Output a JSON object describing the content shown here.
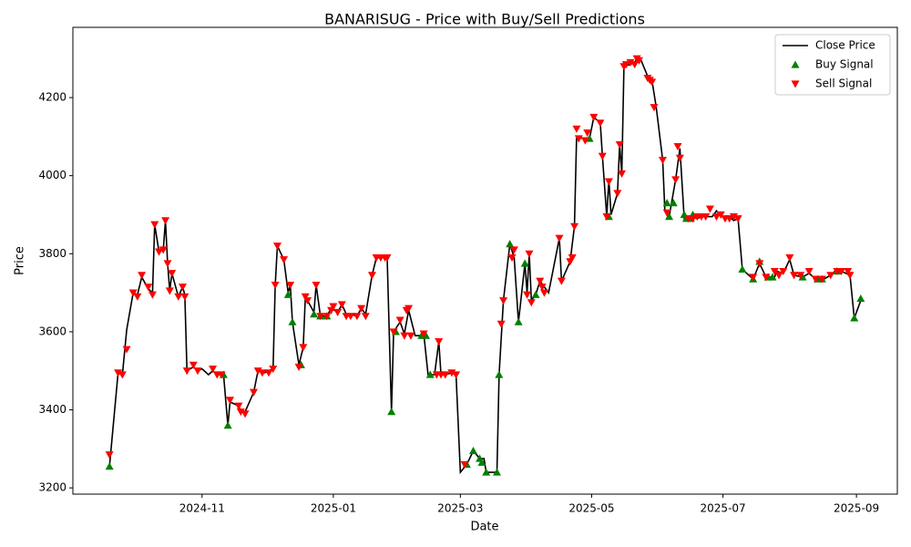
{
  "chart_data": {
    "type": "line",
    "title": "BANARISUG - Price with Buy/Sell Predictions",
    "x_label": "Date",
    "y_label": "Price",
    "xlim": [
      1,
      384
    ],
    "ylim": [
      3184,
      4380
    ],
    "xticks": [
      {
        "value": 61,
        "label": "2024-11"
      },
      {
        "value": 122,
        "label": "2025-01"
      },
      {
        "value": 181,
        "label": "2025-03"
      },
      {
        "value": 242,
        "label": "2025-05"
      },
      {
        "value": 303,
        "label": "2025-07"
      },
      {
        "value": 365,
        "label": "2025-09"
      }
    ],
    "yticks": [
      3200,
      3400,
      3600,
      3800,
      4000,
      4200
    ],
    "legend": "upper right",
    "series": [
      {
        "name": "Close Price",
        "color": "#000000",
        "style": "line",
        "x": [
          18,
          22,
          24,
          26,
          29,
          31,
          33,
          36,
          38,
          39,
          41,
          43,
          44,
          45,
          46,
          47,
          50,
          52,
          53,
          54,
          57,
          59,
          61,
          64,
          66,
          68,
          71,
          73,
          74,
          78,
          79,
          81,
          85,
          87,
          90,
          92,
          94,
          95,
          96,
          99,
          101,
          102,
          103,
          106,
          108,
          109,
          113,
          114,
          116,
          119,
          121,
          124,
          126,
          128,
          130,
          133,
          135,
          137,
          140,
          142,
          145,
          147,
          149,
          150,
          153,
          155,
          157,
          160,
          162,
          164,
          166,
          169,
          171,
          172,
          174,
          177,
          179,
          181,
          184,
          187,
          190,
          192,
          193,
          198,
          199,
          201,
          204,
          206,
          208,
          211,
          212,
          213,
          214,
          216,
          218,
          222,
          227,
          228,
          232,
          234,
          235,
          238,
          241,
          243,
          246,
          247,
          249,
          250,
          251,
          254,
          255,
          256,
          257,
          260,
          262,
          263,
          265,
          268,
          270,
          272,
          275,
          276,
          278,
          281,
          283,
          285,
          287,
          289,
          291,
          293,
          295,
          298,
          300,
          302,
          304,
          307,
          308,
          310,
          312,
          317,
          320,
          323,
          327,
          328,
          331,
          334,
          336,
          340,
          343,
          346,
          350,
          353,
          355,
          358,
          362,
          364,
          367
        ],
        "values": [
          3255,
          3495,
          3490,
          3605,
          3700,
          3695,
          3740,
          3710,
          3700,
          3875,
          3805,
          3810,
          3885,
          3775,
          3705,
          3750,
          3690,
          3715,
          3695,
          3500,
          3510,
          3500,
          3505,
          3490,
          3500,
          3490,
          3490,
          3360,
          3420,
          3410,
          3395,
          3395,
          3445,
          3500,
          3495,
          3500,
          3505,
          3720,
          3820,
          3785,
          3700,
          3720,
          3625,
          3515,
          3560,
          3690,
          3650,
          3720,
          3640,
          3640,
          3660,
          3650,
          3670,
          3645,
          3645,
          3640,
          3660,
          3645,
          3745,
          3790,
          3790,
          3790,
          3395,
          3600,
          3625,
          3595,
          3655,
          3590,
          3590,
          3595,
          3490,
          3490,
          3575,
          3490,
          3490,
          3495,
          3490,
          3240,
          3260,
          3295,
          3275,
          3275,
          3240,
          3240,
          3490,
          3680,
          3825,
          3790,
          3625,
          3775,
          3700,
          3800,
          3680,
          3695,
          3730,
          3700,
          3840,
          3730,
          3780,
          3870,
          4100,
          4095,
          4095,
          4150,
          4135,
          4050,
          3895,
          3990,
          3900,
          3955,
          4080,
          4005,
          4280,
          4285,
          4290,
          4300,
          4295,
          4255,
          4245,
          4175,
          4040,
          3910,
          3895,
          3990,
          4070,
          3890,
          3890,
          3895,
          3890,
          3895,
          3895,
          3895,
          3910,
          3895,
          3895,
          3890,
          3885,
          3890,
          3760,
          3735,
          3775,
          3740,
          3740,
          3755,
          3750,
          3785,
          3745,
          3740,
          3750,
          3735,
          3735,
          3745,
          3755,
          3755,
          3745,
          3635,
          3680
        ]
      },
      {
        "name": "Buy Signal",
        "color": "#008000",
        "style": "triangle-up",
        "x": [
          18,
          71,
          73,
          101,
          103,
          107,
          113,
          116,
          119,
          149,
          151,
          163,
          165,
          167,
          184,
          187,
          190,
          191,
          193,
          198,
          199,
          204,
          208,
          211,
          216,
          241,
          250,
          277,
          278,
          280,
          285,
          286,
          288,
          289,
          312,
          317,
          320,
          324,
          326,
          340,
          347,
          349,
          356,
          364,
          367
        ],
        "values": [
          3255,
          3490,
          3360,
          3695,
          3625,
          3515,
          3645,
          3640,
          3640,
          3395,
          3600,
          3590,
          3590,
          3490,
          3260,
          3295,
          3275,
          3265,
          3240,
          3240,
          3490,
          3825,
          3625,
          3775,
          3695,
          4095,
          3895,
          3930,
          3895,
          3930,
          3900,
          3890,
          3890,
          3900,
          3760,
          3735,
          3780,
          3740,
          3740,
          3740,
          3735,
          3735,
          3755,
          3635,
          3685
        ]
      },
      {
        "name": "Sell Signal",
        "color": "#ff0000",
        "style": "triangle-down",
        "x": [
          18,
          22,
          24,
          26,
          29,
          31,
          33,
          36,
          38,
          39,
          41,
          43,
          44,
          45,
          46,
          47,
          50,
          52,
          53,
          54,
          57,
          59,
          66,
          68,
          70,
          74,
          78,
          79,
          81,
          85,
          87,
          89,
          92,
          94,
          95,
          96,
          99,
          102,
          106,
          108,
          109,
          110,
          114,
          116,
          119,
          121,
          122,
          124,
          126,
          128,
          130,
          133,
          135,
          137,
          140,
          142,
          144,
          146,
          147,
          150,
          153,
          155,
          156,
          157,
          158,
          164,
          170,
          171,
          172,
          174,
          177,
          179,
          183,
          200,
          201,
          205,
          206,
          212,
          213,
          214,
          218,
          219,
          220,
          227,
          228,
          232,
          233,
          234,
          235,
          236,
          239,
          240,
          243,
          246,
          247,
          249,
          250,
          254,
          255,
          256,
          257,
          258,
          260,
          262,
          263,
          264,
          268,
          269,
          270,
          271,
          275,
          277,
          281,
          282,
          283,
          287,
          289,
          291,
          293,
          295,
          297,
          300,
          302,
          304,
          306,
          308,
          310,
          317,
          320,
          323,
          327,
          329,
          331,
          334,
          336,
          339,
          343,
          346,
          349,
          353,
          356,
          358,
          361,
          362
        ],
        "values": [
          3285,
          3495,
          3490,
          3555,
          3700,
          3690,
          3745,
          3715,
          3695,
          3875,
          3805,
          3810,
          3885,
          3775,
          3705,
          3750,
          3690,
          3715,
          3690,
          3500,
          3515,
          3500,
          3505,
          3490,
          3490,
          3425,
          3410,
          3395,
          3390,
          3445,
          3500,
          3495,
          3495,
          3505,
          3720,
          3820,
          3785,
          3720,
          3510,
          3560,
          3690,
          3680,
          3720,
          3640,
          3640,
          3655,
          3665,
          3650,
          3670,
          3640,
          3640,
          3640,
          3660,
          3640,
          3745,
          3790,
          3790,
          3790,
          3790,
          3600,
          3630,
          3590,
          3655,
          3660,
          3590,
          3595,
          3490,
          3575,
          3490,
          3490,
          3495,
          3490,
          3260,
          3620,
          3680,
          3790,
          3810,
          3695,
          3800,
          3675,
          3730,
          3715,
          3700,
          3840,
          3730,
          3780,
          3790,
          3870,
          4120,
          4095,
          4090,
          4110,
          4150,
          4135,
          4050,
          3895,
          3985,
          3955,
          4080,
          4005,
          4280,
          4285,
          4290,
          4285,
          4300,
          4295,
          4250,
          4245,
          4240,
          4175,
          4040,
          3905,
          3990,
          4075,
          4045,
          3890,
          3890,
          3895,
          3895,
          3895,
          3915,
          3895,
          3900,
          3890,
          3890,
          3895,
          3890,
          3740,
          3775,
          3740,
          3755,
          3745,
          3755,
          3790,
          3745,
          3745,
          3755,
          3735,
          3735,
          3745,
          3755,
          3755,
          3755,
          3745
        ]
      }
    ]
  }
}
